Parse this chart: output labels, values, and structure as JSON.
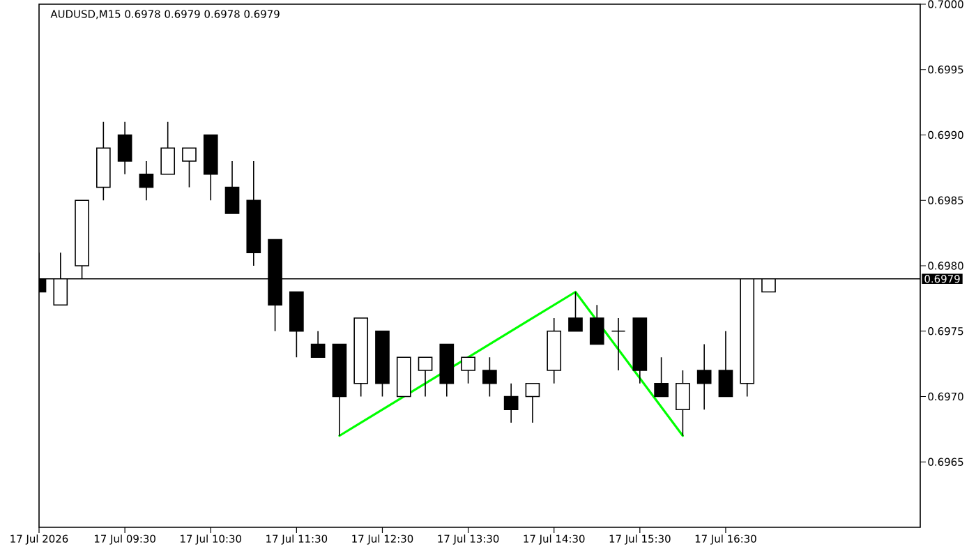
{
  "chart_data": {
    "type": "candlestick",
    "title": "AUDUSD,M15 0.6978 0.6979 0.6978 0.6979",
    "x": [
      "2026-07-17T08:30",
      "2026-07-17T08:45",
      "2026-07-17T09:00",
      "2026-07-17T09:15",
      "2026-07-17T09:30",
      "2026-07-17T09:45",
      "2026-07-17T10:00",
      "2026-07-17T10:15",
      "2026-07-17T10:30",
      "2026-07-17T10:45",
      "2026-07-17T11:00",
      "2026-07-17T11:15",
      "2026-07-17T11:30",
      "2026-07-17T11:45",
      "2026-07-17T12:00",
      "2026-07-17T12:15",
      "2026-07-17T12:30",
      "2026-07-17T12:45",
      "2026-07-17T13:00",
      "2026-07-17T13:15",
      "2026-07-17T13:30",
      "2026-07-17T13:45",
      "2026-07-17T14:00",
      "2026-07-17T14:15",
      "2026-07-17T14:30",
      "2026-07-17T14:45",
      "2026-07-17T15:00",
      "2026-07-17T15:15",
      "2026-07-17T15:30",
      "2026-07-17T15:45",
      "2026-07-17T16:00",
      "2026-07-17T16:15",
      "2026-07-17T16:30",
      "2026-07-17T16:45",
      "2026-07-17T17:00"
    ],
    "ohlc": [
      [
        0.6979,
        0.6981,
        0.6978,
        0.6978
      ],
      [
        0.6977,
        0.6981,
        0.6977,
        0.6979
      ],
      [
        0.698,
        0.6985,
        0.6979,
        0.6985
      ],
      [
        0.6986,
        0.6991,
        0.6985,
        0.6989
      ],
      [
        0.699,
        0.6991,
        0.6987,
        0.6988
      ],
      [
        0.6987,
        0.6988,
        0.6985,
        0.6986
      ],
      [
        0.6987,
        0.6991,
        0.6987,
        0.6989
      ],
      [
        0.6988,
        0.6989,
        0.6986,
        0.6989
      ],
      [
        0.699,
        0.699,
        0.6985,
        0.6987
      ],
      [
        0.6986,
        0.6988,
        0.6984,
        0.6984
      ],
      [
        0.6985,
        0.6988,
        0.698,
        0.6981
      ],
      [
        0.6982,
        0.6982,
        0.6975,
        0.6977
      ],
      [
        0.6978,
        0.6978,
        0.6973,
        0.6975
      ],
      [
        0.6974,
        0.6975,
        0.6973,
        0.6973
      ],
      [
        0.6974,
        0.6974,
        0.6967,
        0.697
      ],
      [
        0.6971,
        0.6976,
        0.697,
        0.6976
      ],
      [
        0.6975,
        0.6975,
        0.697,
        0.6971
      ],
      [
        0.697,
        0.6973,
        0.697,
        0.6973
      ],
      [
        0.6972,
        0.6973,
        0.697,
        0.6973
      ],
      [
        0.6974,
        0.6974,
        0.697,
        0.6971
      ],
      [
        0.6972,
        0.6973,
        0.6971,
        0.6973
      ],
      [
        0.6972,
        0.6973,
        0.697,
        0.6971
      ],
      [
        0.697,
        0.6971,
        0.6968,
        0.6969
      ],
      [
        0.697,
        0.6971,
        0.6968,
        0.6971
      ],
      [
        0.6972,
        0.6976,
        0.6971,
        0.6975
      ],
      [
        0.6976,
        0.6978,
        0.6975,
        0.6975
      ],
      [
        0.6976,
        0.6977,
        0.6974,
        0.6974
      ],
      [
        0.6975,
        0.6976,
        0.6972,
        0.6975
      ],
      [
        0.6976,
        0.6976,
        0.6971,
        0.6972
      ],
      [
        0.6971,
        0.6973,
        0.697,
        0.697
      ],
      [
        0.6969,
        0.6972,
        0.6967,
        0.6971
      ],
      [
        0.6972,
        0.6974,
        0.6969,
        0.6971
      ],
      [
        0.6972,
        0.6975,
        0.697,
        0.697
      ],
      [
        0.6971,
        0.6979,
        0.697,
        0.6979
      ],
      [
        0.6978,
        0.6979,
        0.6978,
        0.6979
      ]
    ],
    "color": "#000000",
    "colors": [
      "#000000",
      "#ffffff",
      "#ffffff",
      "#ffffff",
      "#000000",
      "#000000",
      "#ffffff",
      "#ffffff",
      "#000000",
      "#000000",
      "#000000",
      "#000000",
      "#000000",
      "#000000",
      "#000000",
      "#ffffff",
      "#000000",
      "#ffffff",
      "#ffffff",
      "#000000",
      "#ffffff",
      "#000000",
      "#000000",
      "#ffffff",
      "#ffffff",
      "#000000",
      "#000000",
      "#000000",
      "#000000",
      "#000000",
      "#ffffff",
      "#000000",
      "#000000",
      "#ffffff",
      "#ffffff"
    ],
    "series": [
      {
        "type": "line",
        "color": "#00ff00",
        "x": [
          "2026-07-17T12:00",
          "2026-07-17T14:45",
          "2026-07-17T16:00"
        ],
        "values": [
          0.6967,
          0.6978,
          0.6967
        ]
      }
    ],
    "ref_lines": [
      {
        "axis": "y",
        "value": 0.6979,
        "label": "0.6979",
        "color": "#000000"
      }
    ],
    "xlim": [
      "2026-07-17T08:30",
      "2026-07-17T18:46"
    ],
    "xticks": [
      {
        "value": "2026-07-17T08:30",
        "label": "17 Jul 2026"
      },
      {
        "value": "2026-07-17T09:30",
        "label": "17 Jul 09:30"
      },
      {
        "value": "2026-07-17T10:30",
        "label": "17 Jul 10:30"
      },
      {
        "value": "2026-07-17T11:30",
        "label": "17 Jul 11:30"
      },
      {
        "value": "2026-07-17T12:30",
        "label": "17 Jul 12:30"
      },
      {
        "value": "2026-07-17T13:30",
        "label": "17 Jul 13:30"
      },
      {
        "value": "2026-07-17T14:30",
        "label": "17 Jul 14:30"
      },
      {
        "value": "2026-07-17T15:30",
        "label": "17 Jul 15:30"
      },
      {
        "value": "2026-07-17T16:30",
        "label": "17 Jul 16:30"
      }
    ],
    "ylim": [
      0.696,
      0.7
    ],
    "yticks": [
      0.6965,
      {
        "value": 0.697,
        "label": "0.6970"
      },
      0.6975,
      {
        "value": 0.698,
        "label": "0.6980"
      },
      0.6985,
      {
        "value": 0.699,
        "label": "0.6990"
      },
      0.6995,
      {
        "value": 0.7,
        "label": "0.7000"
      }
    ]
  }
}
